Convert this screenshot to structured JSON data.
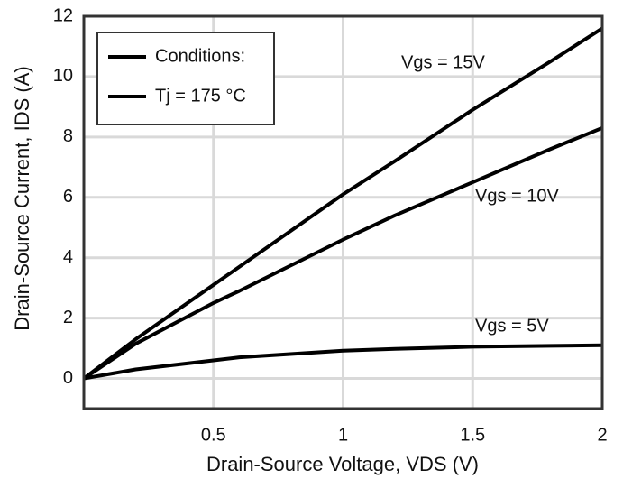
{
  "chart_data": {
    "type": "line",
    "x_label": "Drain-Source Voltage, VDS (V)",
    "y_label": "Drain-Source Current, IDS (A)",
    "legend": [
      "Conditions:",
      "Tj = 175 °C"
    ],
    "x": [
      0,
      0.2,
      0.5,
      0.6,
      1,
      1.2,
      1.5,
      1.8,
      2
    ],
    "series": [
      {
        "name": "Vgs = 15V",
        "color": "#000000",
        "values": [
          0,
          1.3,
          3.1,
          3.7,
          6.1,
          7.2,
          8.9,
          10.5,
          11.6
        ]
      },
      {
        "name": "Vgs = 10V",
        "color": "#000000",
        "values": [
          0,
          1.15,
          2.5,
          2.9,
          4.6,
          5.4,
          6.5,
          7.6,
          8.3
        ]
      },
      {
        "name": "Vgs = 5V",
        "color": "#000000",
        "values": [
          0,
          0.3,
          0.6,
          0.7,
          0.92,
          0.98,
          1.05,
          1.08,
          1.1
        ]
      }
    ],
    "xlim": [
      0,
      2
    ],
    "xticks": [
      0.5,
      1,
      1.5,
      2
    ],
    "ylim": [
      -1,
      12
    ],
    "yticks": [
      0,
      2,
      4,
      6,
      8,
      10,
      12
    ],
    "grid": true
  }
}
